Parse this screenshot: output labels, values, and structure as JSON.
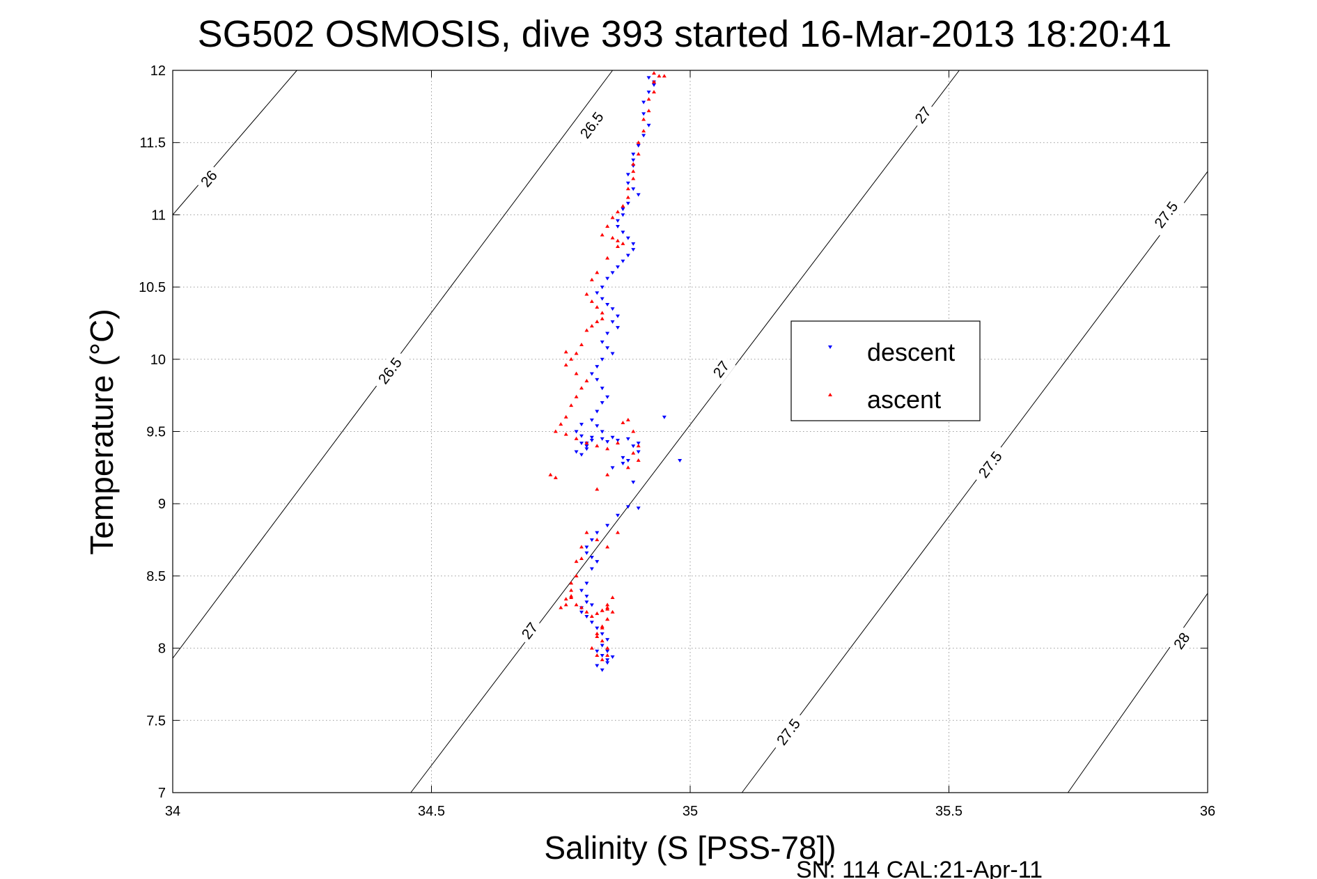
{
  "chart_data": {
    "type": "scatter",
    "title": "SG502 OSMOSIS, dive 393 started 16-Mar-2013 18:20:41",
    "xlabel": "Salinity (S [PSS-78])",
    "ylabel": "Temperature (°C)",
    "xlim": [
      34,
      36
    ],
    "ylim": [
      7,
      12
    ],
    "x_ticks": [
      "34",
      "34.5",
      "35",
      "35.5",
      "36"
    ],
    "y_ticks": [
      "7",
      "7.5",
      "8",
      "8.5",
      "9",
      "9.5",
      "10",
      "10.5",
      "11",
      "11.5",
      "12"
    ],
    "grid": true,
    "legend_position": "center-right",
    "footer": "SN: 114  CAL:21-Apr-11",
    "contours": [
      {
        "level": "26",
        "points": [
          [
            34.0,
            11.0
          ],
          [
            34.24,
            12.0
          ]
        ],
        "labels": [
          [
            34.07,
            11.25
          ]
        ]
      },
      {
        "level": "26.5",
        "points": [
          [
            34.0,
            7.93
          ],
          [
            34.85,
            12.0
          ]
        ],
        "labels": [
          [
            34.42,
            9.92
          ],
          [
            34.81,
            11.62
          ]
        ]
      },
      {
        "level": "27",
        "points": [
          [
            34.46,
            7.0
          ],
          [
            35.52,
            12.0
          ]
        ],
        "labels": [
          [
            34.69,
            8.12
          ],
          [
            35.06,
            9.93
          ],
          [
            35.45,
            11.69
          ]
        ]
      },
      {
        "level": "27.5",
        "points": [
          [
            35.1,
            7.0
          ],
          [
            36.0,
            11.3
          ]
        ],
        "labels": [
          [
            35.19,
            7.42
          ],
          [
            35.58,
            9.27
          ],
          [
            35.92,
            11.0
          ]
        ]
      },
      {
        "level": "28",
        "points": [
          [
            35.73,
            7.0
          ],
          [
            36.0,
            8.38
          ]
        ],
        "labels": [
          [
            35.95,
            8.05
          ]
        ]
      }
    ],
    "series": [
      {
        "name": "descent",
        "color": "#0000ff",
        "marker": "triangle-down",
        "x": [
          34.92,
          34.93,
          34.92,
          34.91,
          34.91,
          34.92,
          34.91,
          34.9,
          34.89,
          34.89,
          34.89,
          34.88,
          34.88,
          34.89,
          34.9,
          34.88,
          34.87,
          34.87,
          34.86,
          34.86,
          34.87,
          34.88,
          34.89,
          34.89,
          34.88,
          34.87,
          34.86,
          34.85,
          34.84,
          34.83,
          34.82,
          34.83,
          34.84,
          34.85,
          34.86,
          34.85,
          34.86,
          34.84,
          34.83,
          34.84,
          34.85,
          34.83,
          34.82,
          34.81,
          34.82,
          34.83,
          34.84,
          34.83,
          34.82,
          34.81,
          34.82,
          34.83,
          34.81,
          34.8,
          34.8,
          34.79,
          34.79,
          34.78,
          34.79,
          34.8,
          34.78,
          34.79,
          34.81,
          34.83,
          34.85,
          34.84,
          34.86,
          34.88,
          34.89,
          34.9,
          34.88,
          34.87,
          34.85,
          34.87,
          34.9,
          34.89,
          34.88,
          34.86,
          34.84,
          34.82,
          34.81,
          34.8,
          34.8,
          34.81,
          34.82,
          34.81,
          34.8,
          34.79,
          34.8,
          34.8,
          34.81,
          34.79,
          34.79,
          34.8,
          34.81,
          34.82,
          34.83,
          34.84,
          34.83,
          34.82,
          34.83,
          34.84,
          34.84,
          34.82,
          34.83,
          34.85,
          34.84,
          34.9,
          34.95,
          34.98,
          34.93
        ],
        "y": [
          11.95,
          11.9,
          11.85,
          11.78,
          11.7,
          11.62,
          11.55,
          11.48,
          11.42,
          11.38,
          11.34,
          11.28,
          11.22,
          11.18,
          11.14,
          11.08,
          11.04,
          11.0,
          10.96,
          10.92,
          10.88,
          10.84,
          10.8,
          10.76,
          10.72,
          10.68,
          10.64,
          10.6,
          10.56,
          10.5,
          10.46,
          10.42,
          10.38,
          10.35,
          10.3,
          10.26,
          10.22,
          10.18,
          10.12,
          10.08,
          10.04,
          10.0,
          9.95,
          9.9,
          9.86,
          9.8,
          9.74,
          9.7,
          9.64,
          9.58,
          9.54,
          9.5,
          9.46,
          9.42,
          9.38,
          9.34,
          9.47,
          9.5,
          9.55,
          9.4,
          9.36,
          9.42,
          9.44,
          9.45,
          9.46,
          9.43,
          9.44,
          9.45,
          9.4,
          9.36,
          9.3,
          9.28,
          9.25,
          9.32,
          9.42,
          9.15,
          8.98,
          8.92,
          8.85,
          8.8,
          8.75,
          8.7,
          8.66,
          8.63,
          8.6,
          8.55,
          8.45,
          8.4,
          8.36,
          8.32,
          8.3,
          8.28,
          8.25,
          8.22,
          8.18,
          8.14,
          8.1,
          8.06,
          8.02,
          7.98,
          7.95,
          7.92,
          7.9,
          7.88,
          7.85,
          7.94,
          7.98,
          8.97,
          9.6,
          9.3,
          11.92
        ],
        "point_count": 111
      },
      {
        "name": "ascent",
        "color": "#ff0000",
        "marker": "triangle-up",
        "x": [
          34.93,
          34.94,
          34.93,
          34.93,
          34.92,
          34.92,
          34.91,
          34.91,
          34.9,
          34.9,
          34.89,
          34.89,
          34.89,
          34.88,
          34.88,
          34.87,
          34.86,
          34.85,
          34.84,
          34.83,
          34.85,
          34.86,
          34.87,
          34.86,
          34.84,
          34.82,
          34.81,
          34.8,
          34.81,
          34.82,
          34.83,
          34.83,
          34.82,
          34.81,
          34.8,
          34.79,
          34.78,
          34.77,
          34.76,
          34.78,
          34.8,
          34.79,
          34.78,
          34.77,
          34.76,
          34.75,
          34.74,
          34.76,
          34.78,
          34.8,
          34.82,
          34.84,
          34.86,
          34.87,
          34.88,
          34.89,
          34.9,
          34.89,
          34.9,
          34.88,
          34.84,
          34.82,
          34.8,
          34.79,
          34.78,
          34.78,
          34.77,
          34.77,
          34.77,
          34.76,
          34.75,
          34.76,
          34.77,
          34.78,
          34.79,
          34.8,
          34.81,
          34.82,
          34.83,
          34.84,
          34.84,
          34.83,
          34.82,
          34.81,
          34.82,
          34.83,
          34.84,
          34.84,
          34.83,
          34.82,
          34.83,
          34.84,
          34.85,
          34.84,
          34.85,
          34.84,
          34.83,
          34.79,
          34.82,
          34.86,
          34.84,
          34.73,
          34.74,
          34.76,
          34.93,
          34.95
        ],
        "y": [
          11.98,
          11.96,
          11.92,
          11.85,
          11.8,
          11.72,
          11.66,
          11.58,
          11.5,
          11.42,
          11.35,
          11.3,
          11.25,
          11.18,
          11.12,
          11.06,
          11.02,
          10.98,
          10.92,
          10.86,
          10.84,
          10.82,
          10.8,
          10.78,
          10.7,
          10.6,
          10.55,
          10.45,
          10.4,
          10.36,
          10.32,
          10.28,
          10.26,
          10.23,
          10.2,
          10.1,
          10.04,
          10.0,
          9.96,
          9.9,
          9.85,
          9.8,
          9.74,
          9.68,
          9.6,
          9.55,
          9.5,
          9.48,
          9.45,
          9.42,
          9.4,
          9.38,
          9.42,
          9.56,
          9.58,
          9.5,
          9.4,
          9.35,
          9.3,
          9.25,
          9.2,
          9.1,
          8.8,
          8.7,
          8.6,
          8.5,
          8.45,
          8.4,
          8.35,
          8.3,
          8.28,
          8.34,
          8.36,
          8.3,
          8.28,
          8.25,
          8.22,
          8.24,
          8.26,
          8.27,
          8.2,
          8.14,
          8.08,
          8.0,
          7.95,
          7.92,
          7.95,
          8.0,
          8.05,
          8.1,
          8.15,
          8.2,
          8.25,
          8.3,
          8.35,
          8.28,
          8.26,
          8.62,
          8.75,
          8.8,
          8.7,
          9.2,
          9.18,
          10.05,
          11.92,
          11.96
        ],
        "point_count": 106
      }
    ]
  }
}
